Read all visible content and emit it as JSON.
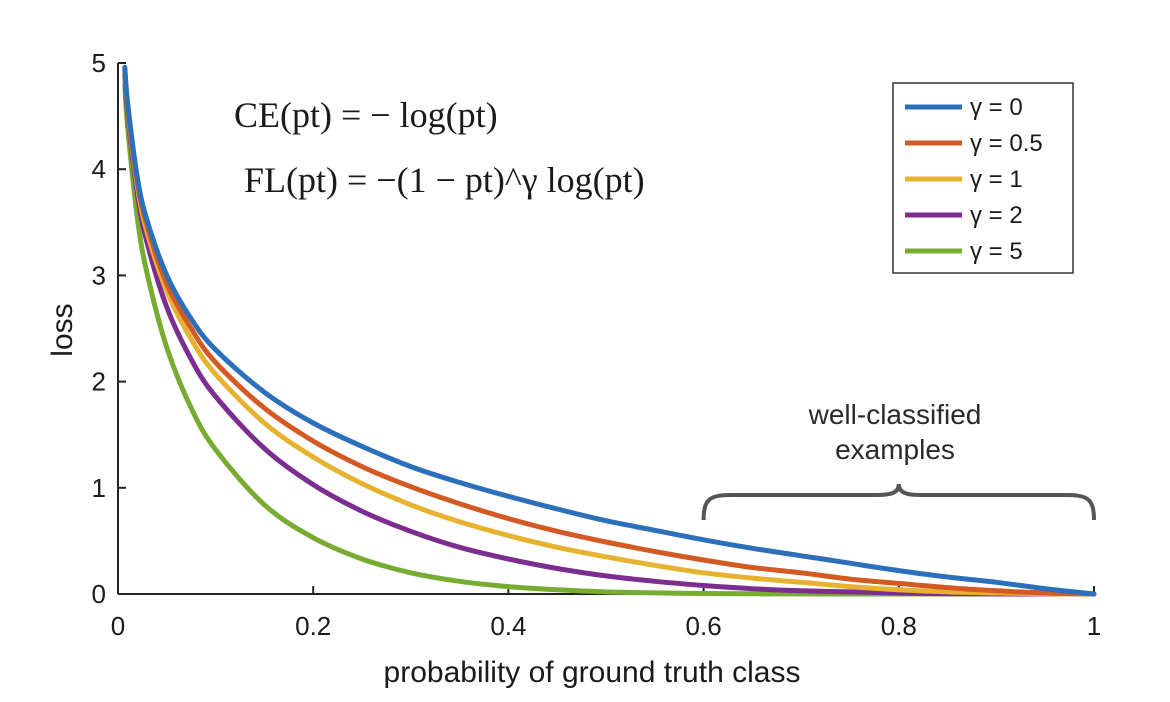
{
  "chart_data": {
    "type": "line",
    "title": "",
    "xlabel": "probability of ground truth class",
    "ylabel": "loss",
    "xlim": [
      0,
      1
    ],
    "ylim": [
      0,
      5
    ],
    "x_ticks": [
      "0",
      "0.2",
      "0.4",
      "0.6",
      "0.8",
      "1"
    ],
    "y_ticks": [
      "0",
      "1",
      "2",
      "3",
      "4",
      "5"
    ],
    "legend_position": "top-right",
    "formulas": {
      "ce": "CE(pt) = − log(pt)",
      "fl": "FL(pt) = −(1 − pt)^γ log(pt)"
    },
    "annotation": {
      "line1": "well-classified",
      "line2": "examples",
      "x_start": 0.6,
      "x_end": 1.0
    },
    "x": [
      0.007,
      0.01,
      0.02,
      0.03,
      0.05,
      0.075,
      0.1,
      0.15,
      0.2,
      0.25,
      0.3,
      0.35,
      0.4,
      0.45,
      0.5,
      0.55,
      0.6,
      0.65,
      0.7,
      0.75,
      0.8,
      0.85,
      0.9,
      0.95,
      1.0
    ],
    "series": [
      {
        "name": "γ = 0",
        "gamma": 0,
        "color": "#2c6fbb",
        "values": [
          4.96,
          4.61,
          3.91,
          3.51,
          3.0,
          2.59,
          2.3,
          1.9,
          1.61,
          1.39,
          1.2,
          1.05,
          0.92,
          0.8,
          0.69,
          0.6,
          0.51,
          0.43,
          0.36,
          0.29,
          0.22,
          0.16,
          0.11,
          0.05,
          0.0
        ]
      },
      {
        "name": "γ = 0.5",
        "gamma": 0.5,
        "color": "#d45a24",
        "values": [
          4.94,
          4.58,
          3.87,
          3.46,
          2.92,
          2.5,
          2.18,
          1.75,
          1.44,
          1.2,
          1.01,
          0.85,
          0.71,
          0.59,
          0.49,
          0.4,
          0.32,
          0.25,
          0.2,
          0.14,
          0.1,
          0.06,
          0.03,
          0.01,
          0.0
        ]
      },
      {
        "name": "γ = 1",
        "gamma": 1,
        "color": "#e8b231",
        "values": [
          4.93,
          4.56,
          3.83,
          3.4,
          2.85,
          2.4,
          2.07,
          1.61,
          1.29,
          1.04,
          0.84,
          0.68,
          0.55,
          0.44,
          0.35,
          0.27,
          0.2,
          0.15,
          0.11,
          0.07,
          0.04,
          0.02,
          0.01,
          0.003,
          0.0
        ]
      },
      {
        "name": "γ = 2",
        "gamma": 2,
        "color": "#7b2d90",
        "values": [
          4.89,
          4.51,
          3.76,
          3.3,
          2.7,
          2.21,
          1.86,
          1.37,
          1.03,
          0.78,
          0.59,
          0.44,
          0.33,
          0.24,
          0.17,
          0.12,
          0.08,
          0.05,
          0.03,
          0.02,
          0.01,
          0.003,
          0.001,
          0.0001,
          0.0
        ]
      },
      {
        "name": "γ = 5",
        "gamma": 5,
        "color": "#77ac30",
        "values": [
          4.79,
          4.38,
          3.53,
          3.01,
          2.32,
          1.75,
          1.36,
          0.84,
          0.53,
          0.33,
          0.2,
          0.12,
          0.07,
          0.04,
          0.02,
          0.01,
          0.005,
          0.002,
          0.001,
          0.0003,
          0.0001,
          0.0,
          0.0,
          0.0,
          0.0
        ]
      }
    ]
  }
}
